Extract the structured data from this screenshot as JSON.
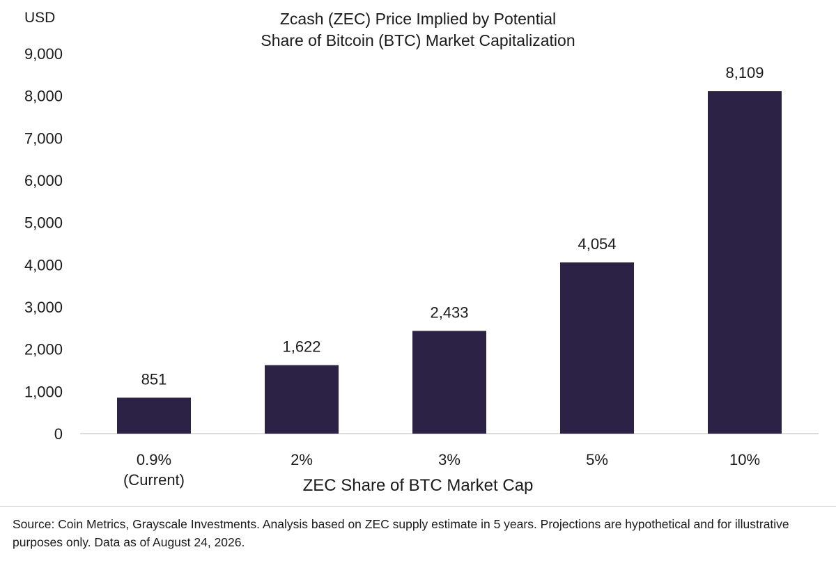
{
  "chart_data": {
    "type": "bar",
    "title_line1": "Zcash (ZEC) Price Implied by Potential",
    "title_line2": "Share of Bitcoin (BTC) Market Capitalization",
    "ylabel": "USD",
    "xlabel": "ZEC Share of BTC Market Cap",
    "categories": [
      "0.9%",
      "2%",
      "3%",
      "5%",
      "10%"
    ],
    "category_sublabels": [
      "(Current)",
      "",
      "",
      "",
      ""
    ],
    "values": [
      851,
      1622,
      2433,
      4054,
      8109
    ],
    "data_labels": [
      "851",
      "1,622",
      "2,433",
      "4,054",
      "8,109"
    ],
    "ylim": [
      0,
      9000
    ],
    "yticks": [
      0,
      1000,
      2000,
      3000,
      4000,
      5000,
      6000,
      7000,
      8000,
      9000
    ],
    "ytick_labels": [
      "0",
      "1,000",
      "2,000",
      "3,000",
      "4,000",
      "5,000",
      "6,000",
      "7,000",
      "8,000",
      "9,000"
    ],
    "bar_color": "#2b2245",
    "grid": false,
    "legend": "none"
  },
  "footer": {
    "source_text": "Source: Coin Metrics, Grayscale Investments. Analysis based on ZEC supply estimate in 5 years. Projections are hypothetical and for illustrative purposes only. Data as of August 24, 2026."
  }
}
